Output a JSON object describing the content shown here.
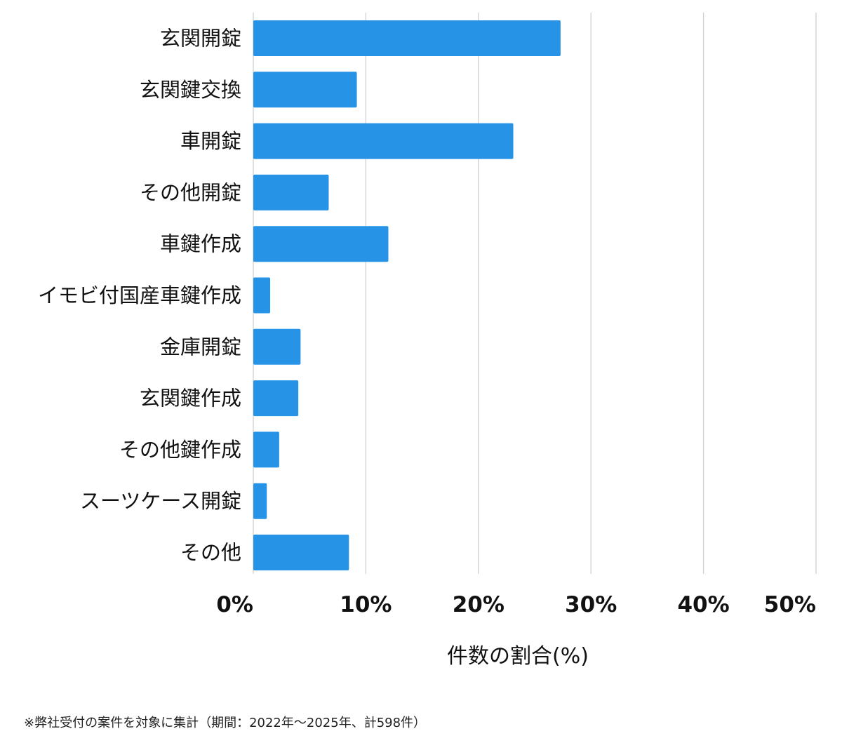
{
  "chart_data": {
    "type": "bar",
    "orientation": "horizontal",
    "categories": [
      "玄関開錠",
      "玄関鍵交換",
      "車開錠",
      "その他開錠",
      "車鍵作成",
      "イモビ付国産車鍵作成",
      "金庫開錠",
      "玄関鍵作成",
      "その他鍵作成",
      "スーツケース開錠",
      "その他"
    ],
    "values": [
      27.3,
      9.2,
      23.1,
      6.7,
      12.0,
      1.5,
      4.2,
      4.0,
      2.3,
      1.2,
      8.5
    ],
    "xlim": [
      0,
      50
    ],
    "xticks": [
      "0%",
      "10%",
      "20%",
      "30%",
      "40%",
      "50%"
    ],
    "xlabel": "件数の割合(%)",
    "ylabel": "",
    "grid": "vertical",
    "bar_color": "#2693e6",
    "grid_color": "#d0d0d0"
  },
  "footnote": "※弊社受付の案件を対象に集計（期間：2022年〜2025年、計598件）"
}
